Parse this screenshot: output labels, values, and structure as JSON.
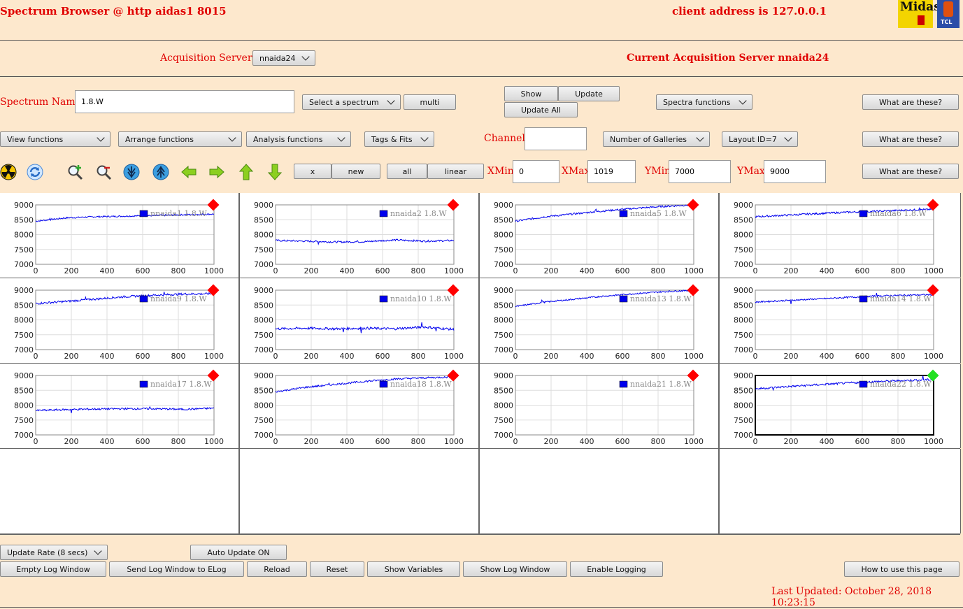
{
  "header": {
    "title": "Spectrum Browser @ http aidas1 8015",
    "client": "client address is 127.0.0.1",
    "logo1": "Midas",
    "logo2": "TCL"
  },
  "acq": {
    "label": "Acquisition Servers",
    "server_value": "nnaida24",
    "current": "Current Acquisition Server nnaida24"
  },
  "spectrum": {
    "label": "Spectrum Name:",
    "value": "1.8.W",
    "select_label": "Select a spectrum",
    "multi_label": "multi",
    "show_label": "Show",
    "update_label": "Update",
    "update_all_label": "Update All",
    "spectra_functions": "Spectra functions",
    "what1": "What are these?"
  },
  "funcs": {
    "view": "View functions",
    "arrange": "Arrange functions",
    "analysis": "Analysis functions",
    "tags": "Tags & Fits",
    "channel_label": "Channel:",
    "channel_value": "",
    "galleries": "Number of Galleries",
    "layout": "Layout ID=7",
    "what2": "What are these?"
  },
  "axes": {
    "x_label": "x",
    "new_label": "new",
    "all_label": "all",
    "linear_label": "linear",
    "xmin_label": "XMin",
    "xmin": "0",
    "xmax_label": "XMax",
    "xmax": "1019",
    "ymin_label": "YMin",
    "ymin": "7000",
    "ymax_label": "YMax",
    "ymax": "9000",
    "what3": "What are these?"
  },
  "chart_data": {
    "type": "line",
    "xlim": [
      0,
      1000
    ],
    "ylim": [
      7000,
      9000
    ],
    "x_ticks": [
      "0",
      "200",
      "400",
      "600",
      "800",
      "1000"
    ],
    "y_ticks": [
      "9000",
      "8500",
      "8000",
      "7500",
      "7000"
    ],
    "panels": [
      {
        "legend": "nnaida1 1.8.W",
        "marker": "#ff0000",
        "levels": [
          8450,
          8560,
          8600,
          8620,
          8640,
          8670,
          8690
        ],
        "noise": 25,
        "spikes": [
          [
            80,
            60
          ],
          [
            600,
            40
          ]
        ]
      },
      {
        "legend": "nnaida2 1.8.W",
        "marker": "#ff0000",
        "levels": [
          7800,
          7780,
          7750,
          7760,
          7820,
          7780,
          7800
        ],
        "noise": 30,
        "spikes": [
          [
            240,
            -60
          ],
          [
            460,
            60
          ]
        ]
      },
      {
        "legend": "nnaida5 1.8.W",
        "marker": "#ff0000",
        "levels": [
          8450,
          8600,
          8700,
          8800,
          8880,
          8950,
          9000
        ],
        "noise": 30,
        "spikes": [
          [
            450,
            60
          ]
        ]
      },
      {
        "legend": "nnaida6 1.8.W",
        "marker": "#ff0000",
        "levels": [
          8600,
          8650,
          8700,
          8750,
          8780,
          8820,
          8850
        ],
        "noise": 30,
        "spikes": [
          [
            920,
            80
          ]
        ]
      },
      {
        "legend": "nnaida9 1.8.W",
        "marker": "#ff0000",
        "levels": [
          8550,
          8620,
          8700,
          8780,
          8830,
          8870,
          8880
        ],
        "noise": 35,
        "spikes": [
          [
            280,
            60
          ],
          [
            720,
            80
          ]
        ]
      },
      {
        "legend": "nnaida10 1.8.W",
        "marker": "#ff0000",
        "levels": [
          7700,
          7720,
          7700,
          7720,
          7700,
          7760,
          7680
        ],
        "noise": 40,
        "spikes": [
          [
            380,
            -120
          ],
          [
            480,
            -150
          ],
          [
            820,
            200
          ],
          [
            900,
            -100
          ]
        ]
      },
      {
        "legend": "nnaida13 1.8.W",
        "marker": "#ff0000",
        "levels": [
          8450,
          8600,
          8700,
          8800,
          8880,
          8950,
          9000
        ],
        "noise": 25,
        "spikes": [
          [
            150,
            60
          ]
        ]
      },
      {
        "legend": "nnaida14 1.8.W",
        "marker": "#ff0000",
        "levels": [
          8600,
          8650,
          8700,
          8750,
          8800,
          8830,
          8850
        ],
        "noise": 25,
        "spikes": [
          [
            200,
            -150
          ],
          [
            680,
            120
          ]
        ]
      },
      {
        "legend": "nnaida17 1.8.W",
        "marker": "#ff0000",
        "levels": [
          7820,
          7850,
          7870,
          7880,
          7880,
          7860,
          7900
        ],
        "noise": 30,
        "spikes": [
          [
            200,
            -100
          ],
          [
            640,
            60
          ]
        ]
      },
      {
        "legend": "nnaida18 1.8.W",
        "marker": "#ff0000",
        "levels": [
          8450,
          8600,
          8700,
          8800,
          8880,
          8920,
          8950
        ],
        "noise": 30,
        "spikes": [
          [
            300,
            60
          ]
        ]
      },
      {
        "legend": "nnaida21 1.8.W",
        "marker": "#ff0000",
        "levels": [],
        "noise": 0,
        "spikes": []
      },
      {
        "legend": "nnaida22 1.8.W",
        "marker": "#22e022",
        "levels": [
          8550,
          8620,
          8680,
          8740,
          8790,
          8830,
          8860
        ],
        "noise": 35,
        "spikes": [
          [
            100,
            -80
          ],
          [
            940,
            150
          ]
        ]
      }
    ]
  },
  "bottom": {
    "update_rate": "Update Rate (8 secs)",
    "auto_update": "Auto Update ON",
    "empty_log": "Empty Log Window",
    "send_log": "Send Log Window to ELog",
    "reload": "Reload",
    "reset": "Reset",
    "show_vars": "Show Variables",
    "show_log": "Show Log Window",
    "enable_logging": "Enable Logging",
    "how_to": "How to use this page",
    "last_updated": "Last Updated: October 28, 2018 10:23:15"
  },
  "colors": {
    "background": "#fde8cd",
    "label_red": "#e00000",
    "line_blue": "#0000ee"
  }
}
